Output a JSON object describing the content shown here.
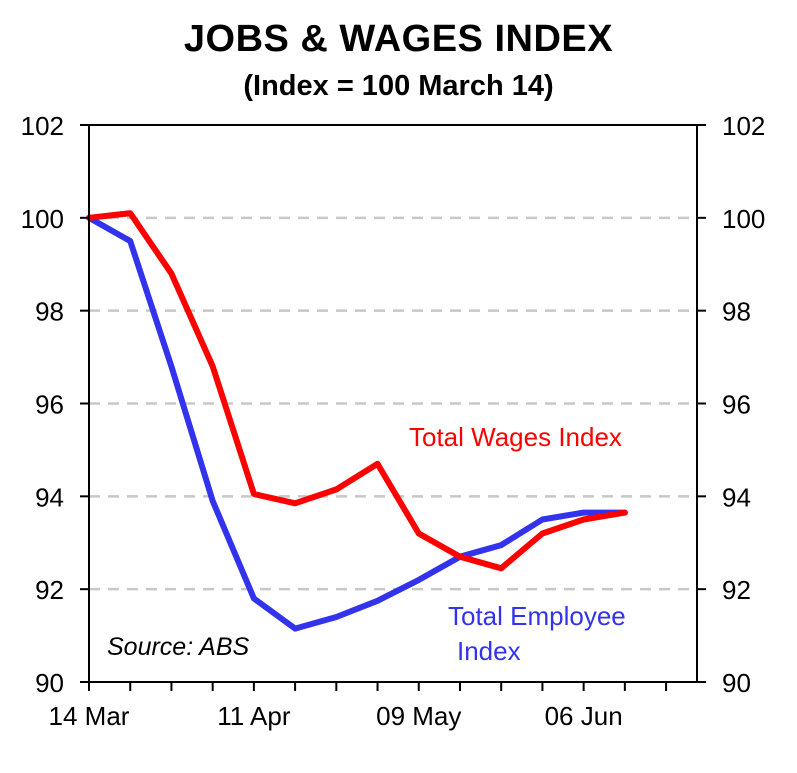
{
  "chart_data": {
    "type": "line",
    "title": "JOBS & WAGES INDEX",
    "subtitle": "(Index = 100 March 14)",
    "x": [
      "14 Mar",
      "21 Mar",
      "28 Mar",
      "04 Apr",
      "11 Apr",
      "18 Apr",
      "25 Apr",
      "02 May",
      "09 May",
      "16 May",
      "23 May",
      "30 May",
      "06 Jun",
      "13 Jun"
    ],
    "x_tick_labels": [
      "14 Mar",
      "11 Apr",
      "09 May",
      "06 Jun"
    ],
    "ylim": [
      90,
      102
    ],
    "y_ticks": [
      90,
      92,
      94,
      96,
      98,
      100,
      102
    ],
    "y_tick_labels": [
      "90",
      "92",
      "94",
      "96",
      "98",
      "100",
      "102"
    ],
    "secondary_y_ticks": [
      90,
      92,
      94,
      96,
      98,
      100,
      102
    ],
    "secondary_y_tick_labels": [
      "90",
      "92",
      "94",
      "96",
      "98",
      "100",
      "102"
    ],
    "grid": "horizontal dashed",
    "series": [
      {
        "name": "Total Wages Index",
        "color": "#ff0000",
        "values": [
          100.0,
          100.1,
          98.8,
          96.8,
          94.05,
          93.85,
          94.15,
          94.7,
          93.2,
          92.7,
          92.45,
          93.2,
          93.5,
          93.65
        ]
      },
      {
        "name": "Total Employee Index",
        "color": "#3333ee",
        "values": [
          100.0,
          99.5,
          96.8,
          93.9,
          91.8,
          91.15,
          91.4,
          91.75,
          92.2,
          92.7,
          92.95,
          93.5,
          93.65,
          93.65
        ]
      }
    ],
    "annotations": {
      "wages_label": "Total Wages Index",
      "employee_label_line1": "Total Employee",
      "employee_label_line2": "Index",
      "source": "Source: ABS"
    }
  }
}
